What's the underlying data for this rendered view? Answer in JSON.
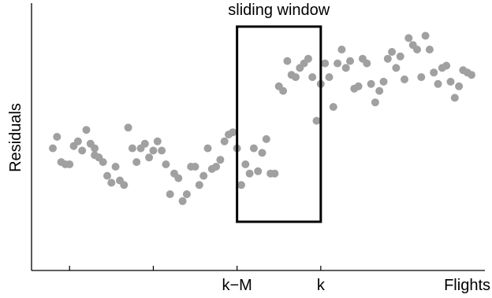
{
  "chart_data": {
    "type": "scatter",
    "title": "",
    "xlabel": "Flights",
    "ylabel": "Residuals",
    "xlim": [
      0,
      100
    ],
    "ylim": [
      0,
      100
    ],
    "grid": false,
    "marker_color": "#a0a0a0",
    "x_ticks": [
      {
        "value": 4,
        "label": ""
      },
      {
        "value": 24,
        "label": ""
      },
      {
        "value": 44,
        "label": "k−M"
      },
      {
        "value": 64,
        "label": "k"
      }
    ],
    "annotation": {
      "label": "sliding window",
      "x_start": 44,
      "x_end": 64,
      "y_bottom": 13,
      "y_top": 98
    },
    "points": [
      [
        10.0,
        42.0
      ],
      [
        0.0,
        45.0
      ],
      [
        1.0,
        50.0
      ],
      [
        2.0,
        39.0
      ],
      [
        3.0,
        38.0
      ],
      [
        4.0,
        38.0
      ],
      [
        5.0,
        46.0
      ],
      [
        6.0,
        48.0
      ],
      [
        7.0,
        44.0
      ],
      [
        8.0,
        53.0
      ],
      [
        9.0,
        47.0
      ],
      [
        10.0,
        45.0
      ],
      [
        11.0,
        41.0
      ],
      [
        12.0,
        39.0
      ],
      [
        13.0,
        33.0
      ],
      [
        14.0,
        30.0
      ],
      [
        15.0,
        37.0
      ],
      [
        16.0,
        31.0
      ],
      [
        17.0,
        29.0
      ],
      [
        18.0,
        54.0
      ],
      [
        19.0,
        45.0
      ],
      [
        20.0,
        39.0
      ],
      [
        21.0,
        45.0
      ],
      [
        22.0,
        47.0
      ],
      [
        23.0,
        41.0
      ],
      [
        24.0,
        44.0
      ],
      [
        25.0,
        48.0
      ],
      [
        26.0,
        44.0
      ],
      [
        27.0,
        38.0
      ],
      [
        28.0,
        25.0
      ],
      [
        29.0,
        34.0
      ],
      [
        30.0,
        32.0
      ],
      [
        31.0,
        22.0
      ],
      [
        32.0,
        25.0
      ],
      [
        33.0,
        37.0
      ],
      [
        34.0,
        37.0
      ],
      [
        35.0,
        29.0
      ],
      [
        36.0,
        33.0
      ],
      [
        37.0,
        45.0
      ],
      [
        38.0,
        36.0
      ],
      [
        39.0,
        37.0
      ],
      [
        40.0,
        40.0
      ],
      [
        41.0,
        48.0
      ],
      [
        42.0,
        51.0
      ],
      [
        43.0,
        52.0
      ],
      [
        44.0,
        45.0
      ],
      [
        45.0,
        29.0
      ],
      [
        46.0,
        38.0
      ],
      [
        47.0,
        34.0
      ],
      [
        48.0,
        45.0
      ],
      [
        49.0,
        35.0
      ],
      [
        50.0,
        43.0
      ],
      [
        51.0,
        49.0
      ],
      [
        52.0,
        34.0
      ],
      [
        53.0,
        34.0
      ],
      [
        54.0,
        72.0
      ],
      [
        55.0,
        70.0
      ],
      [
        56.0,
        83.0
      ],
      [
        57.0,
        77.0
      ],
      [
        58.0,
        76.0
      ],
      [
        59.0,
        80.0
      ],
      [
        60.0,
        82.0
      ],
      [
        61.0,
        84.0
      ],
      [
        62.0,
        76.0
      ],
      [
        63.0,
        57.0
      ],
      [
        64.0,
        73.0
      ],
      [
        65.0,
        82.0
      ],
      [
        66.0,
        76.0
      ],
      [
        67.0,
        63.0
      ],
      [
        68.0,
        82.0
      ],
      [
        69.0,
        88.0
      ],
      [
        70.0,
        80.0
      ],
      [
        71.0,
        83.0
      ],
      [
        72.0,
        71.0
      ],
      [
        73.0,
        72.0
      ],
      [
        74.0,
        84.0
      ],
      [
        75.0,
        82.0
      ],
      [
        76.0,
        73.0
      ],
      [
        77.0,
        65.0
      ],
      [
        78.0,
        70.0
      ],
      [
        79.0,
        74.0
      ],
      [
        80.0,
        84.0
      ],
      [
        81.0,
        87.0
      ],
      [
        82.0,
        80.0
      ],
      [
        83.0,
        85.0
      ],
      [
        84.0,
        75.0
      ],
      [
        85.0,
        93.0
      ],
      [
        86.0,
        90.0
      ],
      [
        87.0,
        88.0
      ],
      [
        88.0,
        76.0
      ],
      [
        89.0,
        94.0
      ],
      [
        90.0,
        88.0
      ],
      [
        91.0,
        78.0
      ],
      [
        92.0,
        73.0
      ],
      [
        93.0,
        80.0
      ],
      [
        94.0,
        81.0
      ],
      [
        95.0,
        74.0
      ],
      [
        96.0,
        67.0
      ],
      [
        97.0,
        72.0
      ],
      [
        98.0,
        79.0
      ],
      [
        99.0,
        78.0
      ],
      [
        100.0,
        77.0
      ]
    ]
  }
}
